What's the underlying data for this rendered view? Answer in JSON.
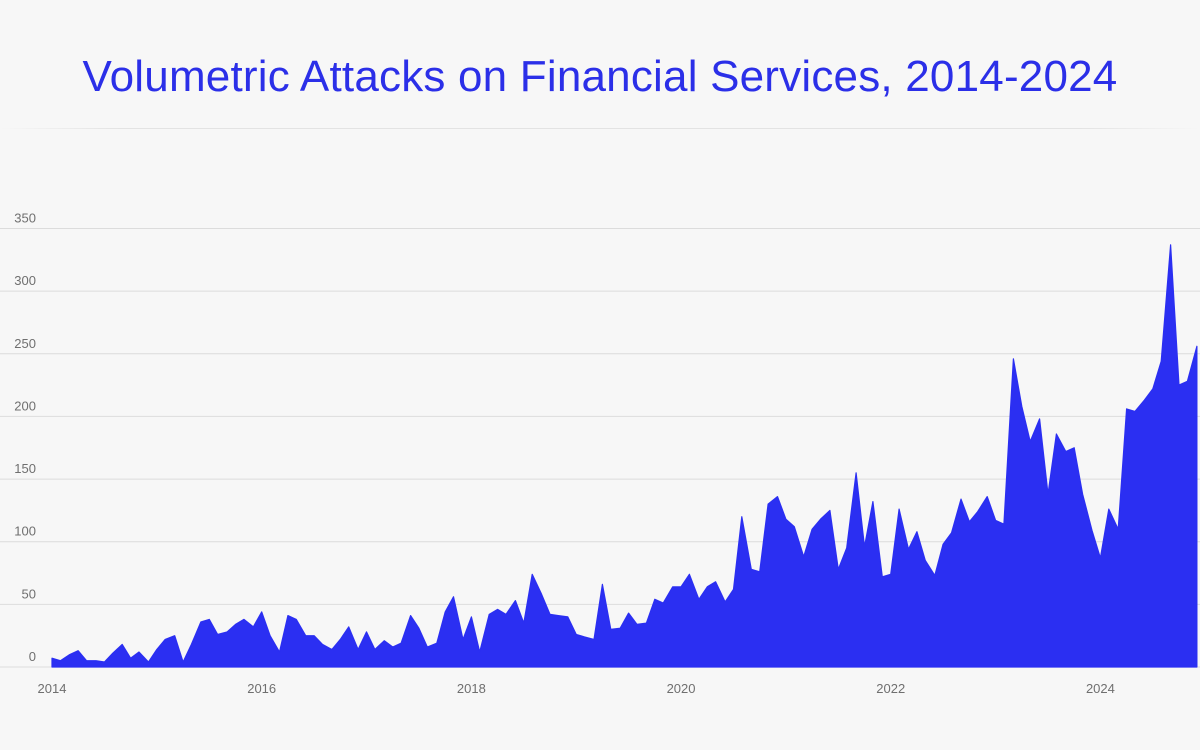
{
  "colors": {
    "accent": "#2b2ff2",
    "title": "#2b2fe8",
    "grid": "#dcdcdc",
    "tick_text": "#6f6f6f"
  },
  "chart_data": {
    "type": "area",
    "title": "Volumetric Attacks on Financial Services, 2014-2024",
    "xlabel": "",
    "ylabel": "",
    "grid": true,
    "legend": "none",
    "xlim": [
      2014.0,
      2024.95
    ],
    "ylim": [
      0,
      350
    ],
    "x_ticks": [
      "2014",
      "2016",
      "2018",
      "2020",
      "2022",
      "2024"
    ],
    "y_ticks": [
      "0",
      "50",
      "100",
      "150",
      "200",
      "250",
      "300",
      "350"
    ],
    "series": [
      {
        "x": [
          2014.0,
          2014.08,
          2014.17,
          2014.25,
          2014.33,
          2014.42,
          2014.5,
          2014.58,
          2014.67,
          2014.75,
          2014.83,
          2014.92,
          2015.0,
          2015.08,
          2015.17,
          2015.25,
          2015.33,
          2015.42,
          2015.5,
          2015.58,
          2015.67,
          2015.75,
          2015.83,
          2015.92,
          2016.0,
          2016.08,
          2016.17,
          2016.25,
          2016.33,
          2016.42,
          2016.5,
          2016.58,
          2016.67,
          2016.75,
          2016.83,
          2016.92,
          2017.0,
          2017.08,
          2017.17,
          2017.25,
          2017.33,
          2017.42,
          2017.5,
          2017.58,
          2017.67,
          2017.75,
          2017.83,
          2017.92,
          2018.0,
          2018.08,
          2018.17,
          2018.25,
          2018.33,
          2018.42,
          2018.5,
          2018.58,
          2018.67,
          2018.75,
          2018.83,
          2018.92,
          2019.0,
          2019.08,
          2019.17,
          2019.25,
          2019.33,
          2019.42,
          2019.5,
          2019.58,
          2019.67,
          2019.75,
          2019.83,
          2019.92,
          2020.0,
          2020.08,
          2020.17,
          2020.25,
          2020.33,
          2020.42,
          2020.5,
          2020.58,
          2020.67,
          2020.75,
          2020.83,
          2020.92,
          2021.0,
          2021.08,
          2021.17,
          2021.25,
          2021.33,
          2021.42,
          2021.5,
          2021.58,
          2021.67,
          2021.75,
          2021.83,
          2021.92,
          2022.0,
          2022.08,
          2022.17,
          2022.25,
          2022.33,
          2022.42,
          2022.5,
          2022.58,
          2022.67,
          2022.75,
          2022.83,
          2022.92,
          2023.0,
          2023.08,
          2023.17,
          2023.25,
          2023.33,
          2023.42,
          2023.5,
          2023.58,
          2023.67,
          2023.75,
          2023.83,
          2023.92,
          2024.0,
          2024.08,
          2024.17,
          2024.25,
          2024.33,
          2024.42,
          2024.5,
          2024.58,
          2024.67,
          2024.75,
          2024.83,
          2024.92
        ],
        "values": [
          7,
          5,
          10,
          13,
          5,
          5,
          4,
          11,
          18,
          7,
          12,
          4,
          14,
          22,
          25,
          4,
          18,
          36,
          38,
          26,
          28,
          34,
          38,
          32,
          44,
          25,
          12,
          41,
          38,
          25,
          25,
          18,
          14,
          22,
          32,
          14,
          28,
          14,
          21,
          16,
          19,
          41,
          31,
          16,
          19,
          44,
          56,
          22,
          40,
          12,
          42,
          46,
          42,
          53,
          35,
          74,
          58,
          42,
          41,
          40,
          26,
          24,
          22,
          66,
          30,
          31,
          43,
          34,
          35,
          54,
          51,
          64,
          64,
          74,
          54,
          64,
          68,
          52,
          62,
          120,
          78,
          76,
          130,
          136,
          118,
          112,
          88,
          110,
          118,
          125,
          78,
          95,
          155,
          96,
          132,
          72,
          74,
          126,
          94,
          108,
          85,
          73,
          98,
          107,
          134,
          116,
          124,
          136,
          117,
          114,
          246,
          208,
          180,
          198,
          138,
          186,
          172,
          175,
          138,
          109,
          87,
          126,
          110,
          206,
          204,
          213,
          222,
          244,
          337,
          225,
          228,
          256
        ]
      }
    ]
  }
}
